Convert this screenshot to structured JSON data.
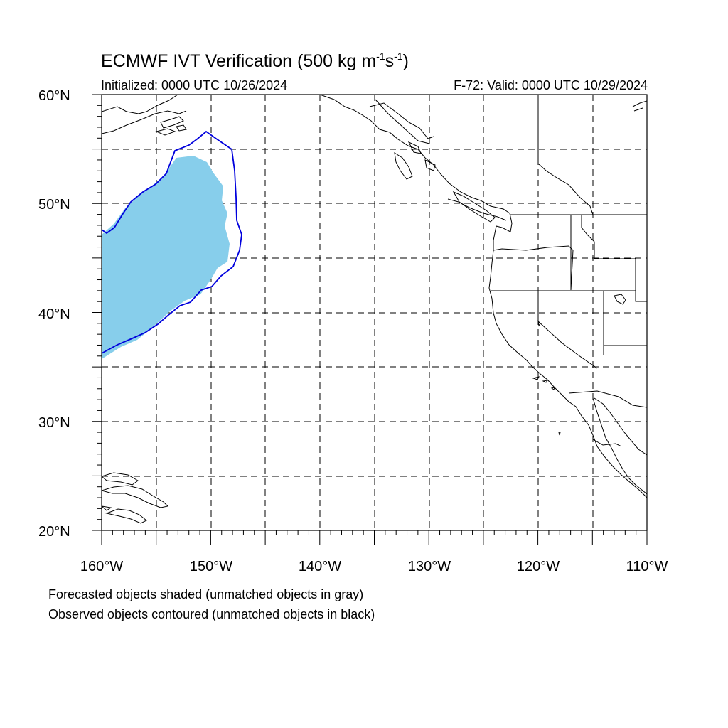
{
  "title": {
    "base": "ECMWF IVT Verification (500 kg m",
    "exp1": "-1",
    "mid": "s",
    "exp2": "-1",
    "end": ")"
  },
  "subtitle_left": "Initialized: 0000 UTC 10/26/2024",
  "subtitle_right": "F-72: Valid: 0000 UTC 10/29/2024",
  "lat_labels": [
    "60°N",
    "50°N",
    "40°N",
    "30°N",
    "20°N"
  ],
  "lon_labels": [
    "160°W",
    "150°W",
    "140°W",
    "130°W",
    "120°W",
    "110°W"
  ],
  "notes": [
    "Forecasted objects shaded (unmatched objects in gray)",
    "Observed objects contoured (unmatched objects in black)"
  ],
  "map_extent": {
    "lon": [
      -160,
      -110
    ],
    "lat": [
      20,
      60
    ]
  },
  "colors": {
    "forecast_fill": "#87ceeb",
    "observed_contour": "#0000dd",
    "coastline": "#000000",
    "grid": "#000000"
  }
}
